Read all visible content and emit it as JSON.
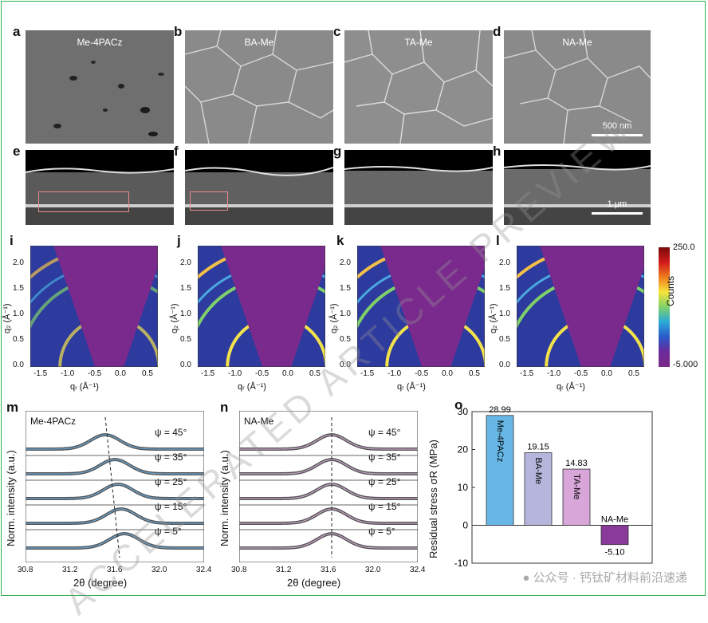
{
  "semTop": {
    "panels": [
      {
        "letter": "a",
        "label": "Me-4PACz"
      },
      {
        "letter": "b",
        "label": "BA-Me"
      },
      {
        "letter": "c",
        "label": "TA-Me"
      },
      {
        "letter": "d",
        "label": "NA-Me"
      }
    ],
    "scale": "500 nm"
  },
  "semCross": {
    "letters": [
      "e",
      "f",
      "g",
      "h"
    ],
    "scale": "1 μm"
  },
  "giwaxs": {
    "letters": [
      "i",
      "j",
      "k",
      "l"
    ],
    "ylabel": "q₂ (Å⁻¹)",
    "xlabel": "qᵣ (Å⁻¹)",
    "yticks": [
      "0.0",
      "0.5",
      "1.0",
      "1.5",
      "2.0"
    ],
    "xticks": [
      "-1.5",
      "-1.0",
      "-0.5",
      "0.0",
      "0.5"
    ],
    "colorbar": {
      "max": "250.0",
      "min": "-5.000",
      "label": "Counts"
    }
  },
  "xrdM": {
    "letter": "m",
    "title": "Me-4PACz",
    "psi": [
      "ψ = 45°",
      "ψ = 35°",
      "ψ = 25°",
      "ψ = 15°",
      "ψ = 5°"
    ],
    "ylabel": "Norm. intensity (a.u.)",
    "xlabel": "2θ (degree)",
    "xticks": [
      "30.8",
      "31.2",
      "31.6",
      "32.0",
      "32.4"
    ]
  },
  "xrdN": {
    "letter": "n",
    "title": "NA-Me",
    "psi": [
      "ψ = 45°",
      "ψ = 35°",
      "ψ = 25°",
      "ψ = 15°",
      "ψ = 5°"
    ],
    "ylabel": "Norm. intensity (a.u.)",
    "xlabel": "2θ (degree)",
    "xticks": [
      "30.8",
      "31.2",
      "31.6",
      "32.0",
      "32.4"
    ]
  },
  "chart_data": {
    "type": "bar",
    "letter": "o",
    "categories": [
      "Me-4PACz",
      "BA-Me",
      "TA-Me",
      "NA-Me"
    ],
    "values": [
      28.99,
      19.15,
      14.83,
      -5.1
    ],
    "value_labels": [
      "28.99",
      "19.15",
      "14.83",
      "-5.10"
    ],
    "colors": [
      "#67b7e6",
      "#b6b6dd",
      "#d8a6d8",
      "#8a3b9a"
    ],
    "ylabel": "Residual stress σR (MPa)",
    "ylim": [
      -10,
      30
    ],
    "yticks": [
      "30",
      "20",
      "10",
      "0",
      "-10"
    ]
  },
  "watermark": "ACCELERATED ARTICLE PREVIEW",
  "footer": "公众号 · 钙钛矿材料前沿速递"
}
